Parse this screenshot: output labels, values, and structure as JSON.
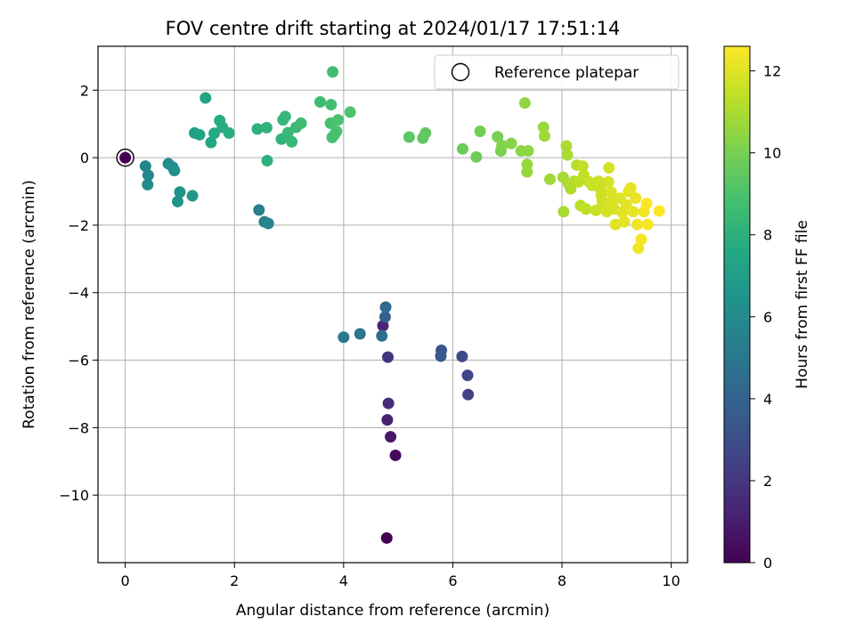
{
  "chart_data": {
    "type": "scatter",
    "title": "FOV centre drift starting at 2024/01/17 17:51:14",
    "xlabel": "Angular distance from reference (arcmin)",
    "ylabel": "Rotation from reference (arcmin)",
    "xlim": [
      -0.5,
      10.3
    ],
    "ylim": [
      -12.0,
      3.3
    ],
    "xticks": [
      0,
      2,
      4,
      6,
      8,
      10
    ],
    "xtick_labels": [
      "0",
      "2",
      "4",
      "6",
      "8",
      "10"
    ],
    "yticks": [
      2,
      0,
      -2,
      -4,
      -6,
      -8,
      -10
    ],
    "ytick_labels": [
      "2",
      "0",
      "−2",
      "−4",
      "−6",
      "−8",
      "−10"
    ],
    "grid": true,
    "legend": {
      "position": "top-right",
      "entries": [
        "Reference platepar"
      ]
    },
    "colorbar": {
      "label": "Hours from first FF file",
      "range": [
        0,
        12.6
      ],
      "ticks": [
        0,
        2,
        4,
        6,
        8,
        10,
        12
      ],
      "tick_labels": [
        "0",
        "2",
        "4",
        "6",
        "8",
        "10",
        "12"
      ],
      "colormap": "viridis"
    },
    "reference_point": {
      "x": 0,
      "y": 0
    },
    "points": [
      {
        "x": 0.0,
        "y": 0.0,
        "c": 0.0
      },
      {
        "x": 4.79,
        "y": -11.27,
        "c": 0.0
      },
      {
        "x": 4.95,
        "y": -8.82,
        "c": 0.3
      },
      {
        "x": 4.86,
        "y": -8.27,
        "c": 0.8
      },
      {
        "x": 4.8,
        "y": -7.77,
        "c": 1.2
      },
      {
        "x": 4.82,
        "y": -7.28,
        "c": 1.5
      },
      {
        "x": 4.72,
        "y": -4.98,
        "c": 1.3
      },
      {
        "x": 4.81,
        "y": -5.91,
        "c": 1.9
      },
      {
        "x": 6.28,
        "y": -7.02,
        "c": 2.4
      },
      {
        "x": 6.27,
        "y": -6.45,
        "c": 2.6
      },
      {
        "x": 6.17,
        "y": -5.89,
        "c": 2.9
      },
      {
        "x": 5.79,
        "y": -5.71,
        "c": 3.3
      },
      {
        "x": 5.78,
        "y": -5.88,
        "c": 3.5
      },
      {
        "x": 4.76,
        "y": -4.72,
        "c": 4.0
      },
      {
        "x": 4.77,
        "y": -4.43,
        "c": 4.3
      },
      {
        "x": 4.7,
        "y": -5.28,
        "c": 4.6
      },
      {
        "x": 4.3,
        "y": -5.22,
        "c": 4.9
      },
      {
        "x": 4.0,
        "y": -5.32,
        "c": 5.1
      },
      {
        "x": 2.45,
        "y": -1.55,
        "c": 5.3
      },
      {
        "x": 2.55,
        "y": -1.9,
        "c": 5.5
      },
      {
        "x": 2.62,
        "y": -1.95,
        "c": 5.7
      },
      {
        "x": 0.37,
        "y": -0.25,
        "c": 5.7
      },
      {
        "x": 0.42,
        "y": -0.52,
        "c": 5.8
      },
      {
        "x": 0.41,
        "y": -0.8,
        "c": 6.0
      },
      {
        "x": 0.79,
        "y": -0.18,
        "c": 6.1
      },
      {
        "x": 0.87,
        "y": -0.28,
        "c": 6.2
      },
      {
        "x": 0.9,
        "y": -0.38,
        "c": 6.3
      },
      {
        "x": 1.0,
        "y": -1.02,
        "c": 6.4
      },
      {
        "x": 0.96,
        "y": -1.3,
        "c": 6.5
      },
      {
        "x": 1.23,
        "y": -1.13,
        "c": 6.6
      },
      {
        "x": 1.27,
        "y": 0.73,
        "c": 7.1
      },
      {
        "x": 1.36,
        "y": 0.68,
        "c": 7.3
      },
      {
        "x": 1.47,
        "y": 1.77,
        "c": 7.4
      },
      {
        "x": 1.57,
        "y": 0.45,
        "c": 7.5
      },
      {
        "x": 1.63,
        "y": 0.72,
        "c": 7.6
      },
      {
        "x": 1.73,
        "y": 1.1,
        "c": 7.7
      },
      {
        "x": 1.78,
        "y": 0.9,
        "c": 7.8
      },
      {
        "x": 1.9,
        "y": 0.73,
        "c": 7.9
      },
      {
        "x": 2.42,
        "y": 0.85,
        "c": 8.0
      },
      {
        "x": 2.6,
        "y": -0.09,
        "c": 8.0
      },
      {
        "x": 2.59,
        "y": 0.89,
        "c": 8.1
      },
      {
        "x": 2.86,
        "y": 0.55,
        "c": 8.2
      },
      {
        "x": 2.89,
        "y": 1.12,
        "c": 8.3
      },
      {
        "x": 2.93,
        "y": 1.22,
        "c": 8.3
      },
      {
        "x": 2.98,
        "y": 0.74,
        "c": 8.4
      },
      {
        "x": 3.05,
        "y": 0.47,
        "c": 8.4
      },
      {
        "x": 3.13,
        "y": 0.9,
        "c": 8.5
      },
      {
        "x": 3.22,
        "y": 1.02,
        "c": 8.6
      },
      {
        "x": 3.57,
        "y": 1.65,
        "c": 8.6
      },
      {
        "x": 3.77,
        "y": 1.57,
        "c": 8.7
      },
      {
        "x": 3.8,
        "y": 2.54,
        "c": 8.7
      },
      {
        "x": 3.76,
        "y": 1.02,
        "c": 8.8
      },
      {
        "x": 3.79,
        "y": 0.6,
        "c": 8.8
      },
      {
        "x": 3.83,
        "y": 0.68,
        "c": 8.9
      },
      {
        "x": 3.87,
        "y": 0.78,
        "c": 8.9
      },
      {
        "x": 3.9,
        "y": 1.12,
        "c": 9.0
      },
      {
        "x": 4.12,
        "y": 1.35,
        "c": 9.0
      },
      {
        "x": 5.2,
        "y": 0.61,
        "c": 9.3
      },
      {
        "x": 5.45,
        "y": 0.58,
        "c": 9.4
      },
      {
        "x": 5.5,
        "y": 0.73,
        "c": 9.5
      },
      {
        "x": 6.18,
        "y": 0.26,
        "c": 9.7
      },
      {
        "x": 6.43,
        "y": 0.02,
        "c": 9.8
      },
      {
        "x": 6.5,
        "y": 0.78,
        "c": 9.9
      },
      {
        "x": 6.82,
        "y": 0.62,
        "c": 10.0
      },
      {
        "x": 6.88,
        "y": 0.2,
        "c": 10.1
      },
      {
        "x": 6.9,
        "y": 0.36,
        "c": 10.2
      },
      {
        "x": 7.07,
        "y": 0.42,
        "c": 10.3
      },
      {
        "x": 7.25,
        "y": 0.2,
        "c": 10.4
      },
      {
        "x": 7.32,
        "y": 1.62,
        "c": 10.5
      },
      {
        "x": 7.38,
        "y": 0.2,
        "c": 10.5
      },
      {
        "x": 7.36,
        "y": -0.2,
        "c": 10.6
      },
      {
        "x": 7.36,
        "y": -0.42,
        "c": 10.6
      },
      {
        "x": 7.66,
        "y": 0.9,
        "c": 10.7
      },
      {
        "x": 7.68,
        "y": 0.64,
        "c": 10.8
      },
      {
        "x": 7.78,
        "y": -0.64,
        "c": 10.8
      },
      {
        "x": 8.02,
        "y": -0.58,
        "c": 10.9
      },
      {
        "x": 8.03,
        "y": -1.6,
        "c": 10.9
      },
      {
        "x": 8.08,
        "y": 0.35,
        "c": 11.0
      },
      {
        "x": 8.1,
        "y": 0.08,
        "c": 11.0
      },
      {
        "x": 8.12,
        "y": -0.78,
        "c": 11.1
      },
      {
        "x": 8.16,
        "y": -0.92,
        "c": 11.1
      },
      {
        "x": 8.22,
        "y": -0.7,
        "c": 11.2
      },
      {
        "x": 8.27,
        "y": -0.22,
        "c": 11.2
      },
      {
        "x": 8.3,
        "y": -0.72,
        "c": 11.3
      },
      {
        "x": 8.34,
        "y": -1.42,
        "c": 11.3
      },
      {
        "x": 8.38,
        "y": -0.25,
        "c": 11.4
      },
      {
        "x": 8.4,
        "y": -0.52,
        "c": 11.4
      },
      {
        "x": 8.44,
        "y": -1.52,
        "c": 11.4
      },
      {
        "x": 8.5,
        "y": -0.72,
        "c": 11.5
      },
      {
        "x": 8.55,
        "y": -0.82,
        "c": 11.5
      },
      {
        "x": 8.62,
        "y": -1.56,
        "c": 11.6
      },
      {
        "x": 8.67,
        "y": -0.7,
        "c": 11.6
      },
      {
        "x": 8.7,
        "y": -0.92,
        "c": 11.6
      },
      {
        "x": 8.72,
        "y": -1.12,
        "c": 11.7
      },
      {
        "x": 8.74,
        "y": -1.3,
        "c": 11.7
      },
      {
        "x": 8.78,
        "y": -1.42,
        "c": 11.7
      },
      {
        "x": 8.82,
        "y": -1.6,
        "c": 11.8
      },
      {
        "x": 8.85,
        "y": -0.72,
        "c": 11.8
      },
      {
        "x": 8.86,
        "y": -0.3,
        "c": 11.8
      },
      {
        "x": 8.9,
        "y": -1.02,
        "c": 11.9
      },
      {
        "x": 8.92,
        "y": -1.3,
        "c": 11.9
      },
      {
        "x": 8.96,
        "y": -1.52,
        "c": 11.9
      },
      {
        "x": 8.98,
        "y": -1.98,
        "c": 12.0
      },
      {
        "x": 9.06,
        "y": -1.2,
        "c": 12.0
      },
      {
        "x": 9.1,
        "y": -1.62,
        "c": 12.0
      },
      {
        "x": 9.14,
        "y": -1.9,
        "c": 12.1
      },
      {
        "x": 9.18,
        "y": -1.4,
        "c": 12.1
      },
      {
        "x": 9.22,
        "y": -1.0,
        "c": 12.1
      },
      {
        "x": 9.26,
        "y": -0.9,
        "c": 12.2
      },
      {
        "x": 9.3,
        "y": -1.6,
        "c": 12.2
      },
      {
        "x": 9.35,
        "y": -1.2,
        "c": 12.2
      },
      {
        "x": 9.38,
        "y": -1.98,
        "c": 12.3
      },
      {
        "x": 9.4,
        "y": -2.68,
        "c": 12.3
      },
      {
        "x": 9.45,
        "y": -2.42,
        "c": 12.4
      },
      {
        "x": 9.5,
        "y": -1.6,
        "c": 12.4
      },
      {
        "x": 9.55,
        "y": -1.36,
        "c": 12.5
      },
      {
        "x": 9.57,
        "y": -1.98,
        "c": 12.5
      },
      {
        "x": 9.78,
        "y": -1.58,
        "c": 12.6
      }
    ]
  }
}
